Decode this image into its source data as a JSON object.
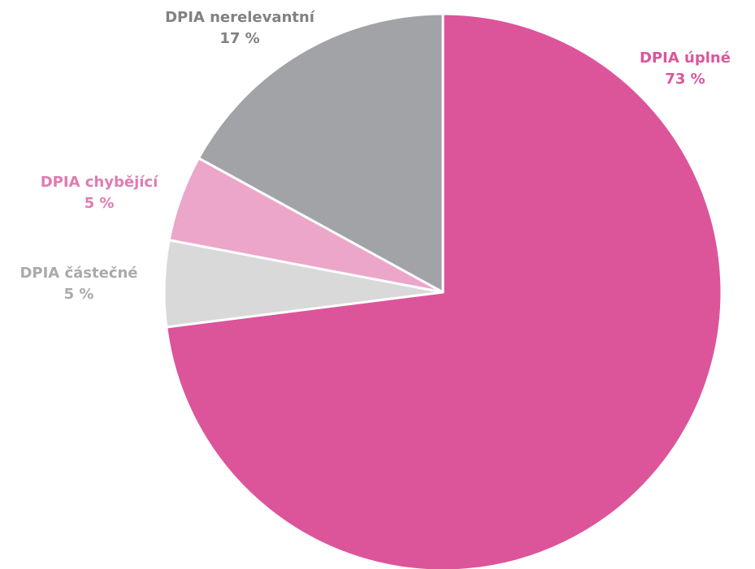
{
  "chart_data": {
    "type": "pie",
    "categories": [
      "DPIA úplné",
      "DPIA částečné",
      "DPIA chybějící",
      "DPIA nerelevantní"
    ],
    "values": [
      73,
      5,
      5,
      17
    ],
    "value_labels": [
      "73 %",
      "5 %",
      "5 %",
      "17 %"
    ],
    "colors": [
      "#dc559b",
      "#d9d9da",
      "#eca6c9",
      "#a2a3a7"
    ],
    "label_colors": [
      "#dc559b",
      "#a9aaad",
      "#e07bb0",
      "#808185"
    ]
  }
}
